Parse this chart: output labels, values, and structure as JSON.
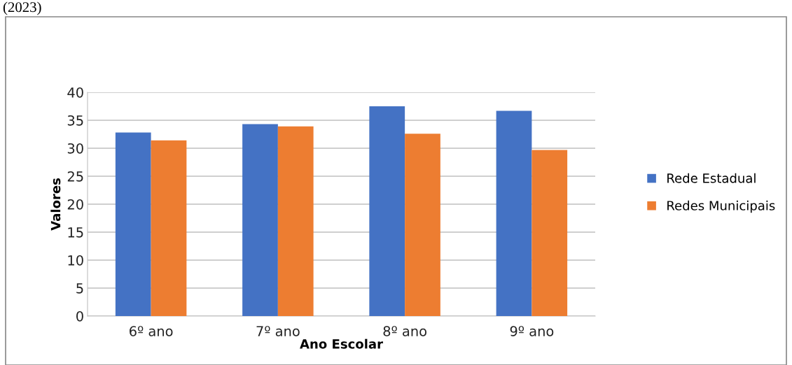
{
  "chart_data": {
    "type": "bar",
    "xlabel": "Ano Escolar",
    "ylabel": "Valores",
    "annotations": [
      "(2023)"
    ],
    "categories": [
      "6º ano",
      "7º ano",
      "8º ano",
      "9º ano"
    ],
    "series": [
      {
        "name": "Rede Estadual",
        "color": "#4472c4",
        "values": [
          32.8,
          34.3,
          37.5,
          36.7
        ]
      },
      {
        "name": "Redes Municipais",
        "color": "#ed7d31",
        "values": [
          31.4,
          33.9,
          32.6,
          29.7
        ]
      }
    ],
    "ylim": [
      0,
      40
    ],
    "yticks": [
      0,
      5,
      10,
      15,
      20,
      25,
      30,
      35,
      40
    ],
    "grid": "y",
    "legend": "right"
  }
}
